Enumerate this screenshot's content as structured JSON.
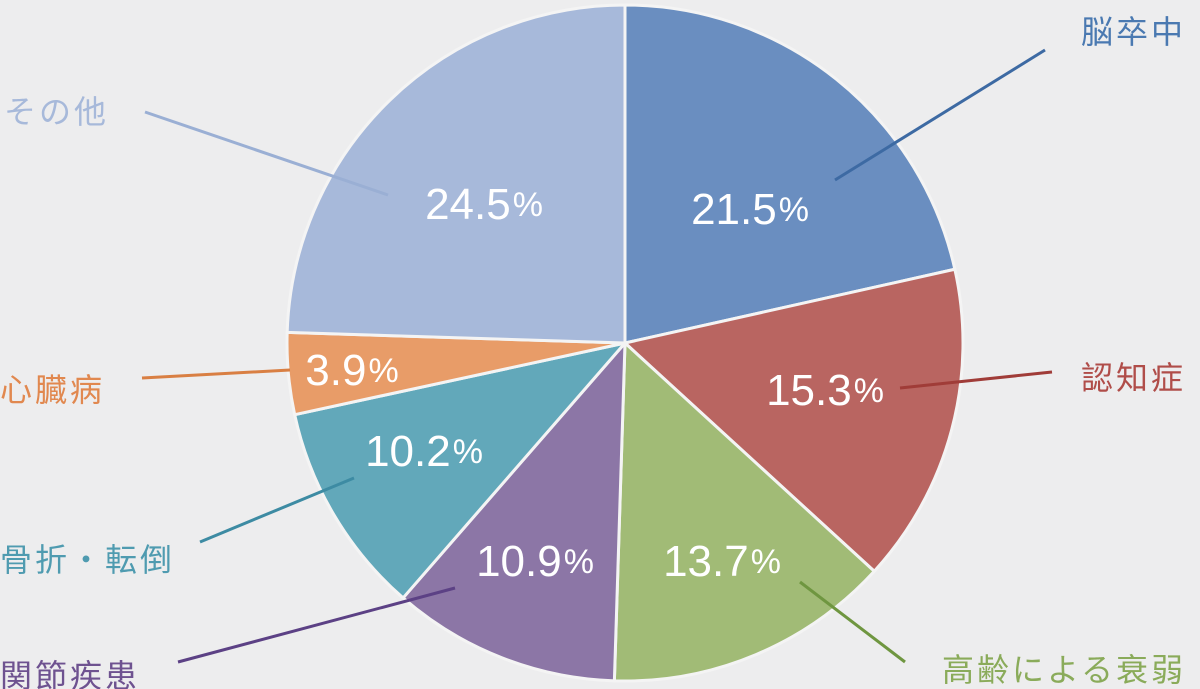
{
  "chart_data": {
    "type": "pie",
    "start_angle": "top",
    "direction": "clockwise",
    "slices": [
      {
        "label": "脳卒中",
        "value": 21.5,
        "value_text": "21.5",
        "unit": "%",
        "color": "#6a8ec0",
        "label_color": "#4a79b1",
        "leader_color": "#3d6aa3"
      },
      {
        "label": "認知症",
        "value": 15.3,
        "value_text": "15.3",
        "unit": "%",
        "color": "#b96561",
        "label_color": "#b04d49",
        "leader_color": "#a03c38"
      },
      {
        "label": "高齢による衰弱",
        "value": 13.7,
        "value_text": "13.7",
        "unit": "%",
        "color": "#a1bb76",
        "label_color": "#8aab5a",
        "leader_color": "#6f9640"
      },
      {
        "label": "関節疾患",
        "value": 10.9,
        "value_text": "10.9",
        "unit": "%",
        "color": "#8c76a6",
        "label_color": "#6e5290",
        "leader_color": "#5c4185"
      },
      {
        "label": "骨折・転倒",
        "value": 10.2,
        "value_text": "10.2",
        "unit": "%",
        "color": "#62a8ba",
        "label_color": "#4f9bb0",
        "leader_color": "#3d8ba3"
      },
      {
        "label": "心臓病",
        "value": 3.9,
        "value_text": "3.9",
        "unit": "%",
        "color": "#e89c68",
        "label_color": "#e1884f",
        "leader_color": "#d97f43"
      },
      {
        "label": "その他",
        "value": 24.5,
        "value_text": "24.5",
        "unit": "%",
        "color": "#a7b9da",
        "label_color": "#a7b9da",
        "leader_color": "#9aafd4"
      }
    ]
  }
}
